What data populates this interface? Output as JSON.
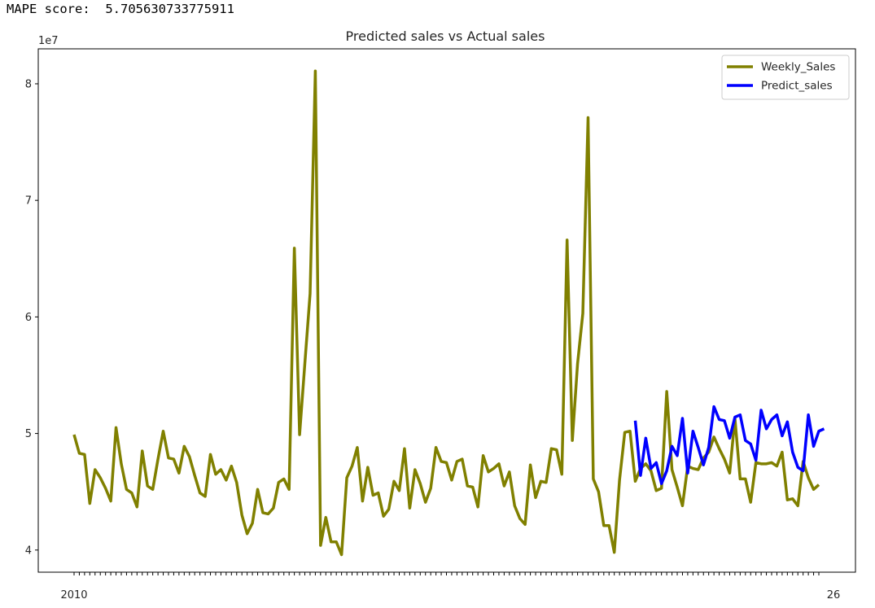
{
  "output": {
    "mape_label": "MAPE score:",
    "mape_value": "5.705630733775911"
  },
  "chart_data": {
    "type": "line",
    "title": "Predicted sales vs Actual sales",
    "xlabel": "",
    "ylabel": "",
    "y_offset_text": "1e7",
    "y_ticks": [
      4,
      5,
      6,
      7,
      8
    ],
    "ylim": [
      3.81,
      8.3
    ],
    "legend_location": "upper right",
    "grid": false,
    "x_tick_label_first": "2010",
    "x_tick_label_last": "26",
    "series": [
      {
        "name": "Weekly_Sales",
        "color": "#808000",
        "start_index": 0,
        "values": [
          4.99,
          4.83,
          4.82,
          4.4,
          4.69,
          4.62,
          4.53,
          4.42,
          5.05,
          4.74,
          4.52,
          4.49,
          4.37,
          4.85,
          4.55,
          4.52,
          4.78,
          5.02,
          4.79,
          4.78,
          4.66,
          4.89,
          4.8,
          4.64,
          4.49,
          4.46,
          4.82,
          4.65,
          4.69,
          4.6,
          4.72,
          4.58,
          4.3,
          4.14,
          4.23,
          4.52,
          4.32,
          4.31,
          4.36,
          4.58,
          4.61,
          4.52,
          6.59,
          4.99,
          5.6,
          6.2,
          8.11,
          4.04,
          4.28,
          4.07,
          4.07,
          3.96,
          4.62,
          4.72,
          4.88,
          4.42,
          4.71,
          4.47,
          4.49,
          4.29,
          4.35,
          4.59,
          4.51,
          4.87,
          4.36,
          4.69,
          4.57,
          4.41,
          4.53,
          4.88,
          4.76,
          4.75,
          4.6,
          4.76,
          4.78,
          4.55,
          4.54,
          4.37,
          4.81,
          4.67,
          4.7,
          4.74,
          4.55,
          4.67,
          4.38,
          4.27,
          4.22,
          4.73,
          4.45,
          4.59,
          4.58,
          4.87,
          4.86,
          4.65,
          6.66,
          4.94,
          5.6,
          6.03,
          7.71,
          4.61,
          4.5,
          4.21,
          4.21,
          3.98,
          4.6,
          5.01,
          5.02,
          4.59,
          4.7,
          4.74,
          4.68,
          4.51,
          4.53,
          5.36,
          4.69,
          4.54,
          4.38,
          4.72,
          4.7,
          4.69,
          4.79,
          4.84,
          4.97,
          4.87,
          4.78,
          4.66,
          5.13,
          4.61,
          4.61,
          4.41,
          4.75,
          4.74,
          4.74,
          4.75,
          4.72,
          4.84,
          4.43,
          4.44,
          4.38,
          4.76,
          4.62,
          4.52,
          4.56
        ]
      },
      {
        "name": "Predict_sales",
        "color": "#0000ff",
        "start_index": 107,
        "values": [
          5.11,
          4.64,
          4.96,
          4.7,
          4.75,
          4.57,
          4.68,
          4.89,
          4.81,
          5.13,
          4.66,
          5.02,
          4.88,
          4.73,
          4.88,
          5.23,
          5.12,
          5.11,
          4.96,
          5.14,
          5.16,
          4.94,
          4.91,
          4.77,
          5.2,
          5.04,
          5.12,
          5.16,
          4.98,
          5.1,
          4.84,
          4.71,
          4.68,
          5.16,
          4.89,
          5.02,
          5.04
        ]
      }
    ]
  }
}
